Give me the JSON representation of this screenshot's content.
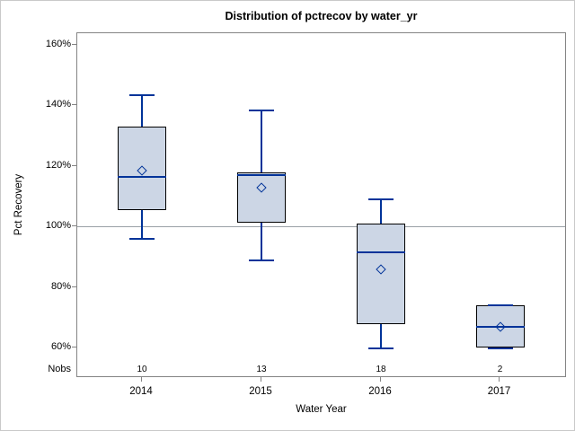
{
  "chart_data": {
    "type": "box",
    "title": "Distribution of pctrecov by water_yr",
    "xlabel": "Water Year",
    "ylabel": "Pct Recovery",
    "nobs_label": "Nobs",
    "categories": [
      "2014",
      "2015",
      "2016",
      "2017"
    ],
    "nobs": [
      10,
      13,
      18,
      2
    ],
    "ylim": [
      60,
      160
    ],
    "yticks": [
      {
        "value": 160,
        "label": "160%"
      },
      {
        "value": 140,
        "label": "140%"
      },
      {
        "value": 120,
        "label": "120%"
      },
      {
        "value": 100,
        "label": "100%"
      },
      {
        "value": 80,
        "label": "80%"
      },
      {
        "value": 60,
        "label": "60%"
      }
    ],
    "ref_line_value": 100,
    "series": [
      {
        "category": "2014",
        "n": 10,
        "whisker_low": 96,
        "q1": 105.5,
        "median": 116.5,
        "mean": 118.5,
        "q3": 133,
        "whisker_high": 143.5
      },
      {
        "category": "2015",
        "n": 13,
        "whisker_low": 89,
        "q1": 101.5,
        "median": 117,
        "mean": 113,
        "q3": 118,
        "whisker_high": 138.5
      },
      {
        "category": "2016",
        "n": 18,
        "whisker_low": 60,
        "q1": 68,
        "median": 91.5,
        "mean": 86,
        "q3": 101,
        "whisker_high": 109
      },
      {
        "category": "2017",
        "n": 2,
        "whisker_low": 60,
        "q1": 60,
        "median": 67,
        "mean": 67,
        "q3": 74,
        "whisker_high": 74
      }
    ],
    "legend": "none",
    "grid": "off",
    "colors": {
      "box_fill": "#ccd6e5",
      "box_border": "#000000",
      "box_lines": "#003399",
      "frame": "#848484",
      "ref_line": "#9aa0a6",
      "background": "#ffffff"
    }
  }
}
